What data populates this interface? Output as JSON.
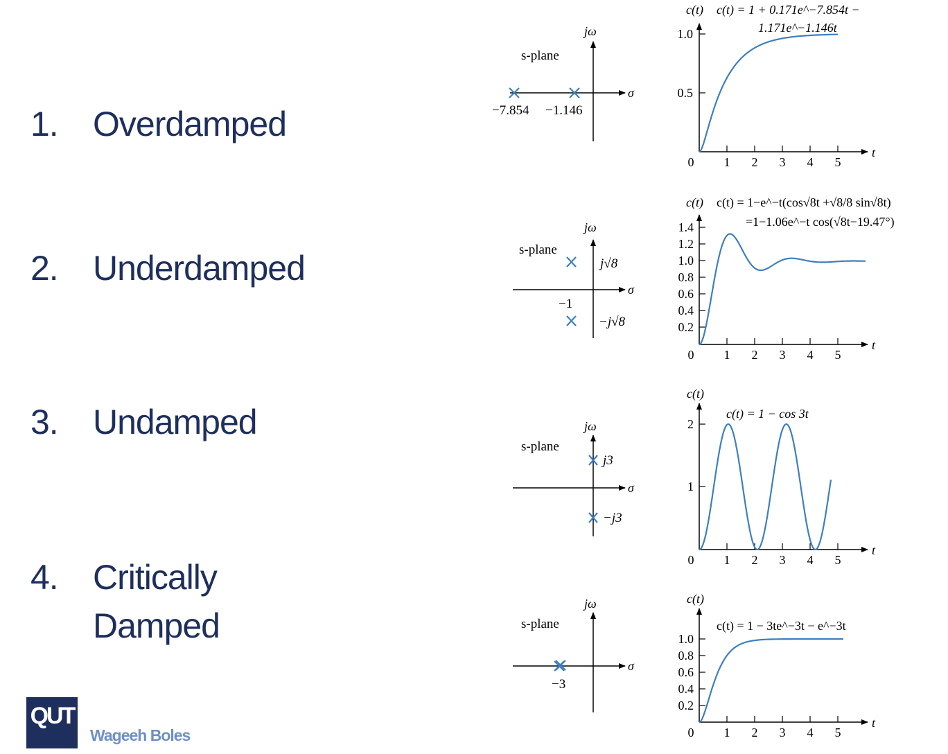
{
  "slide": {
    "items": [
      {
        "number": "1.",
        "label": "Overdamped"
      },
      {
        "number": "2.",
        "label": "Underdamped"
      },
      {
        "number": "3.",
        "label": "Undamped"
      },
      {
        "number": "4.",
        "label": "Critically",
        "label2": "Damped"
      }
    ],
    "logo": "QUT",
    "author": "Wageeh Boles",
    "colors": {
      "text": "#1e2f5e",
      "curve": "#3d7fbf",
      "pole": "#3d7fbf",
      "author": "#6f8fc7"
    }
  },
  "panels": [
    {
      "splane": {
        "label": "s-plane",
        "jw": "jω",
        "sigma": "σ",
        "pole_labels": [
          "−7.854",
          "−1.146"
        ]
      },
      "plot": {
        "ylabel": "c(t)",
        "equation_line1": "c(t) = 1 + 0.171e^−7.854t −",
        "equation_line2": "1.171e^−1.146t",
        "yticks": [
          "1.0",
          "0.5",
          "0"
        ],
        "xticks": [
          "1",
          "2",
          "3",
          "4",
          "5"
        ],
        "xlabel": "t"
      }
    },
    {
      "splane": {
        "label": "s-plane",
        "jw": "jω",
        "sigma": "σ",
        "pole_labels": [
          "j√8",
          "−j√8",
          "−1"
        ]
      },
      "plot": {
        "ylabel": "c(t)",
        "equation_line1": "c(t) = 1−e^−t(cos√8t +√8/8 sin√8t)",
        "equation_line2": "=1−1.06e^−t cos(√8t−19.47°)",
        "yticks": [
          "1.4",
          "1.2",
          "1.0",
          "0.8",
          "0.6",
          "0.4",
          "0.2",
          "0"
        ],
        "xticks": [
          "1",
          "2",
          "3",
          "4",
          "5"
        ],
        "xlabel": "t"
      }
    },
    {
      "splane": {
        "label": "s-plane",
        "jw": "jω",
        "sigma": "σ",
        "pole_labels": [
          "j3",
          "−j3"
        ]
      },
      "plot": {
        "ylabel": "c(t)",
        "equation_line1": "c(t) = 1 − cos 3t",
        "yticks": [
          "2",
          "1",
          "0"
        ],
        "xticks": [
          "1",
          "2",
          "3",
          "4",
          "5"
        ],
        "xlabel": "t"
      }
    },
    {
      "splane": {
        "label": "s-plane",
        "jw": "jω",
        "sigma": "σ",
        "pole_labels": [
          "−3"
        ]
      },
      "plot": {
        "ylabel": "c(t)",
        "equation_line1": "c(t) = 1 − 3te^−3t − e^−3t",
        "yticks": [
          "1.0",
          "0.8",
          "0.6",
          "0.4",
          "0.2",
          "0"
        ],
        "xticks": [
          "1",
          "2",
          "3",
          "4",
          "5"
        ],
        "xlabel": "t"
      }
    }
  ]
}
